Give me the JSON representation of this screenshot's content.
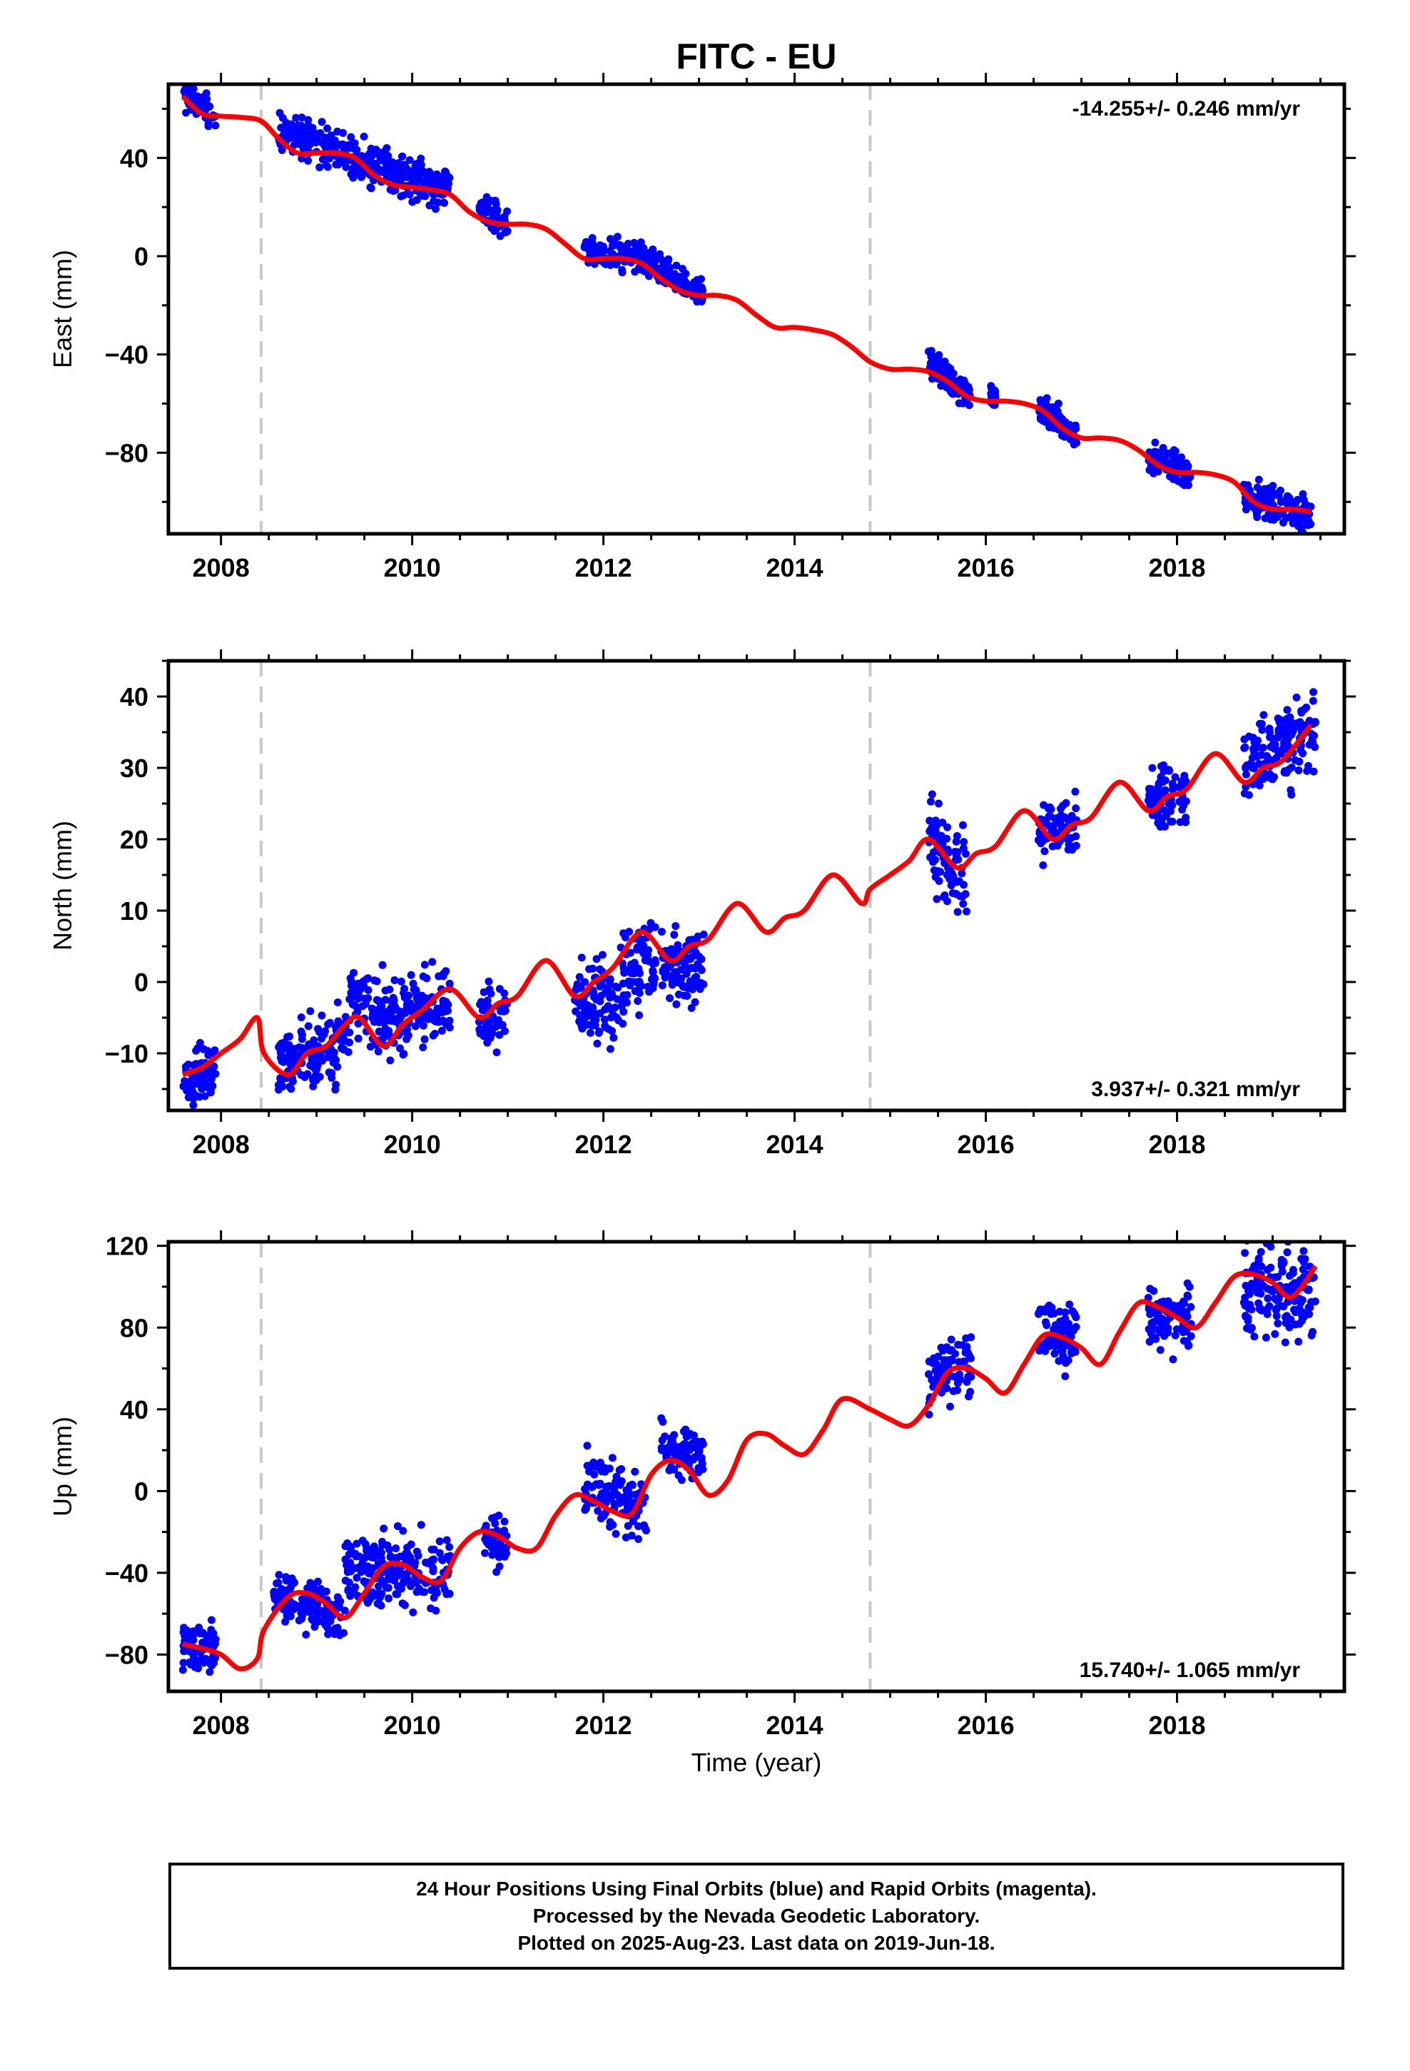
{
  "chart_data": {
    "type": "scatter",
    "title": "FITC - EU",
    "xlabel": "Time (year)",
    "x_ticks": [
      2008,
      2010,
      2012,
      2014,
      2016,
      2018
    ],
    "x_range": [
      2007.45,
      2019.75
    ],
    "vertical_markers": [
      2008.42,
      2014.79
    ],
    "colors": {
      "data": "#0000ff",
      "model": "#ff0000",
      "markers": "#c8c8c8",
      "frame": "#000000"
    },
    "panels": [
      {
        "name": "East",
        "ylabel": "East (mm)",
        "ylim": [
          -113,
          70
        ],
        "y_ticks": [
          -80,
          -40,
          0,
          40
        ],
        "y_tick_labels": [
          "−80",
          "−40",
          "0",
          "40"
        ],
        "rate_text": "-14.255+/- 0.246 mm/yr",
        "rate_position": "top-right",
        "clusters": [
          {
            "x": [
              2007.6,
              2007.95
            ],
            "y": [
              66,
              57
            ],
            "spread": 3
          },
          {
            "x": [
              2008.6,
              2010.4
            ],
            "y": [
              52,
              26
            ],
            "spread": 4
          },
          {
            "x": [
              2010.7,
              2011.0
            ],
            "y": [
              19,
              13
            ],
            "spread": 3
          },
          {
            "x": [
              2011.8,
              2012.55
            ],
            "y": [
              2,
              -2
            ],
            "spread": 3
          },
          {
            "x": [
              2012.55,
              2013.05
            ],
            "y": [
              -5,
              -16
            ],
            "spread": 3
          },
          {
            "x": [
              2015.4,
              2015.85
            ],
            "y": [
              -43,
              -58
            ],
            "spread": 3
          },
          {
            "x": [
              2016.05,
              2016.1
            ],
            "y": [
              -56,
              -58
            ],
            "spread": 2
          },
          {
            "x": [
              2016.55,
              2016.95
            ],
            "y": [
              -62,
              -73
            ],
            "spread": 3
          },
          {
            "x": [
              2017.7,
              2018.15
            ],
            "y": [
              -81,
              -89
            ],
            "spread": 3
          },
          {
            "x": [
              2018.7,
              2019.4
            ],
            "y": [
              -98,
              -105
            ],
            "spread": 4
          }
        ],
        "model": {
          "x": [
            2007.6,
            2007.8,
            2008.0,
            2008.2,
            2008.42,
            2008.6,
            2008.8,
            2009.0,
            2009.2,
            2009.4,
            2009.6,
            2009.8,
            2010.0,
            2010.2,
            2010.4,
            2010.6,
            2010.8,
            2011.0,
            2011.2,
            2011.4,
            2011.6,
            2011.8,
            2012.0,
            2012.2,
            2012.4,
            2012.6,
            2012.8,
            2013.0,
            2013.2,
            2013.4,
            2013.6,
            2013.8,
            2014.0,
            2014.2,
            2014.4,
            2014.6,
            2014.79,
            2015.0,
            2015.2,
            2015.4,
            2015.6,
            2015.8,
            2016.0,
            2016.2,
            2016.4,
            2016.6,
            2016.8,
            2017.0,
            2017.2,
            2017.4,
            2017.6,
            2017.8,
            2018.0,
            2018.2,
            2018.4,
            2018.6,
            2018.8,
            2019.0,
            2019.2,
            2019.4
          ],
          "y": [
            65,
            58,
            57,
            56.5,
            55,
            48,
            42,
            42,
            42,
            40,
            33,
            29,
            28,
            27,
            25,
            18,
            14,
            13,
            13,
            11,
            5,
            -1,
            -1,
            -1,
            -3,
            -9,
            -14,
            -16,
            -16,
            -18,
            -24,
            -29,
            -29,
            -30,
            -32,
            -37,
            -43,
            -46,
            -46,
            -47,
            -51,
            -57,
            -59,
            -59,
            -60,
            -63,
            -70,
            -74,
            -74,
            -75,
            -79,
            -85,
            -88,
            -88,
            -89,
            -92,
            -100,
            -103,
            -103,
            -104
          ]
        }
      },
      {
        "name": "North",
        "ylabel": "North (mm)",
        "ylim": [
          -18,
          45
        ],
        "y_ticks": [
          -10,
          0,
          10,
          20,
          30,
          40
        ],
        "y_tick_labels": [
          "−10",
          "0",
          "10",
          "20",
          "30",
          "40"
        ],
        "rate_text": "3.937+/- 0.321 mm/yr",
        "rate_position": "bottom-right",
        "clusters": [
          {
            "x": [
              2007.6,
              2007.95
            ],
            "y": [
              -14,
              -12
            ],
            "spread": 2
          },
          {
            "x": [
              2008.6,
              2009.3
            ],
            "y": [
              -12,
              -8
            ],
            "spread": 2.5
          },
          {
            "x": [
              2009.3,
              2009.7
            ],
            "y": [
              -3,
              -5
            ],
            "spread": 3
          },
          {
            "x": [
              2009.7,
              2010.4
            ],
            "y": [
              -6,
              -2
            ],
            "spread": 2.5
          },
          {
            "x": [
              2010.7,
              2011.0
            ],
            "y": [
              -4,
              -5
            ],
            "spread": 2
          },
          {
            "x": [
              2011.7,
              2012.15
            ],
            "y": [
              -2,
              -3
            ],
            "spread": 3
          },
          {
            "x": [
              2012.15,
              2012.55
            ],
            "y": [
              0,
              4
            ],
            "spread": 3
          },
          {
            "x": [
              2012.6,
              2013.05
            ],
            "y": [
              1,
              2
            ],
            "spread": 2.5
          },
          {
            "x": [
              2015.4,
              2015.8
            ],
            "y": [
              20,
              14
            ],
            "spread": 3
          },
          {
            "x": [
              2016.55,
              2016.95
            ],
            "y": [
              21,
              22
            ],
            "spread": 2
          },
          {
            "x": [
              2017.7,
              2018.1
            ],
            "y": [
              26,
              26
            ],
            "spread": 2
          },
          {
            "x": [
              2018.7,
              2019.45
            ],
            "y": [
              30,
              36
            ],
            "spread": 3
          }
        ],
        "model": {
          "x": [
            2007.6,
            2007.8,
            2008.0,
            2008.2,
            2008.38,
            2008.45,
            2008.7,
            2008.9,
            2009.1,
            2009.3,
            2009.45,
            2009.7,
            2009.9,
            2010.1,
            2010.4,
            2010.7,
            2010.9,
            2011.1,
            2011.4,
            2011.7,
            2011.9,
            2012.1,
            2012.4,
            2012.7,
            2012.9,
            2013.1,
            2013.4,
            2013.7,
            2013.9,
            2014.1,
            2014.4,
            2014.7,
            2014.79,
            2015.0,
            2015.2,
            2015.4,
            2015.7,
            2015.9,
            2016.1,
            2016.4,
            2016.7,
            2016.9,
            2017.1,
            2017.4,
            2017.7,
            2017.9,
            2018.1,
            2018.4,
            2018.7,
            2018.9,
            2019.1,
            2019.4
          ],
          "y": [
            -13,
            -12,
            -10,
            -8,
            -5,
            -10,
            -13,
            -10,
            -9,
            -6,
            -5,
            -9,
            -6,
            -4,
            -1,
            -5,
            -3,
            -2,
            3,
            -2,
            0,
            2,
            7,
            3,
            5,
            6,
            11,
            7,
            9,
            10,
            15,
            11,
            13,
            15,
            17,
            20,
            16,
            18,
            19,
            24,
            20,
            22,
            23,
            28,
            24,
            26,
            27,
            32,
            28,
            30,
            31,
            36
          ]
        }
      },
      {
        "name": "Up",
        "ylabel": "Up (mm)",
        "ylim": [
          -98,
          122
        ],
        "y_ticks": [
          -80,
          -40,
          0,
          40,
          80,
          120
        ],
        "y_tick_labels": [
          "−80",
          "−40",
          "0",
          "40",
          "80",
          "120"
        ],
        "rate_text": "15.740+/- 1.065 mm/yr",
        "rate_position": "bottom-right",
        "clusters": [
          {
            "x": [
              2007.6,
              2007.95
            ],
            "y": [
              -76,
              -78
            ],
            "spread": 6
          },
          {
            "x": [
              2008.55,
              2009.3
            ],
            "y": [
              -52,
              -60
            ],
            "spread": 6
          },
          {
            "x": [
              2009.3,
              2010.4
            ],
            "y": [
              -40,
              -40
            ],
            "spread": 9
          },
          {
            "x": [
              2010.75,
              2011.0
            ],
            "y": [
              -23,
              -25
            ],
            "spread": 6
          },
          {
            "x": [
              2011.8,
              2012.45
            ],
            "y": [
              2,
              -8
            ],
            "spread": 8
          },
          {
            "x": [
              2012.6,
              2013.05
            ],
            "y": [
              20,
              20
            ],
            "spread": 6
          },
          {
            "x": [
              2015.4,
              2015.85
            ],
            "y": [
              55,
              62
            ],
            "spread": 7
          },
          {
            "x": [
              2016.55,
              2016.95
            ],
            "y": [
              78,
              75
            ],
            "spread": 7
          },
          {
            "x": [
              2017.7,
              2018.15
            ],
            "y": [
              85,
              83
            ],
            "spread": 7
          },
          {
            "x": [
              2018.7,
              2019.45
            ],
            "y": [
              100,
              95
            ],
            "spread": 12
          }
        ],
        "model": {
          "x": [
            2007.6,
            2007.8,
            2008.0,
            2008.2,
            2008.38,
            2008.45,
            2008.7,
            2008.9,
            2009.1,
            2009.3,
            2009.5,
            2009.7,
            2009.9,
            2010.1,
            2010.3,
            2010.5,
            2010.7,
            2010.9,
            2011.1,
            2011.3,
            2011.5,
            2011.7,
            2011.9,
            2012.1,
            2012.3,
            2012.5,
            2012.7,
            2012.9,
            2013.1,
            2013.3,
            2013.5,
            2013.7,
            2013.9,
            2014.1,
            2014.3,
            2014.5,
            2014.79,
            2015.0,
            2015.2,
            2015.4,
            2015.6,
            2015.8,
            2016.0,
            2016.2,
            2016.4,
            2016.6,
            2016.8,
            2017.0,
            2017.2,
            2017.4,
            2017.6,
            2017.8,
            2018.0,
            2018.2,
            2018.4,
            2018.6,
            2018.8,
            2019.0,
            2019.2,
            2019.45
          ],
          "y": [
            -75,
            -77,
            -80,
            -87,
            -82,
            -68,
            -52,
            -50,
            -55,
            -62,
            -50,
            -37,
            -36,
            -42,
            -44,
            -28,
            -20,
            -22,
            -28,
            -28,
            -12,
            -2,
            -5,
            -10,
            -11,
            8,
            15,
            10,
            -2,
            5,
            25,
            28,
            22,
            18,
            30,
            45,
            40,
            35,
            32,
            42,
            58,
            60,
            55,
            48,
            62,
            76,
            75,
            70,
            62,
            78,
            92,
            90,
            85,
            80,
            92,
            105,
            106,
            102,
            95,
            110
          ]
        }
      }
    ]
  },
  "footer": {
    "line1": "24 Hour Positions Using Final Orbits (blue) and Rapid Orbits (magenta).",
    "line2": "Processed by the Nevada Geodetic Laboratory.",
    "line3": "Plotted on 2025-Aug-23. Last data on 2019-Jun-18."
  }
}
